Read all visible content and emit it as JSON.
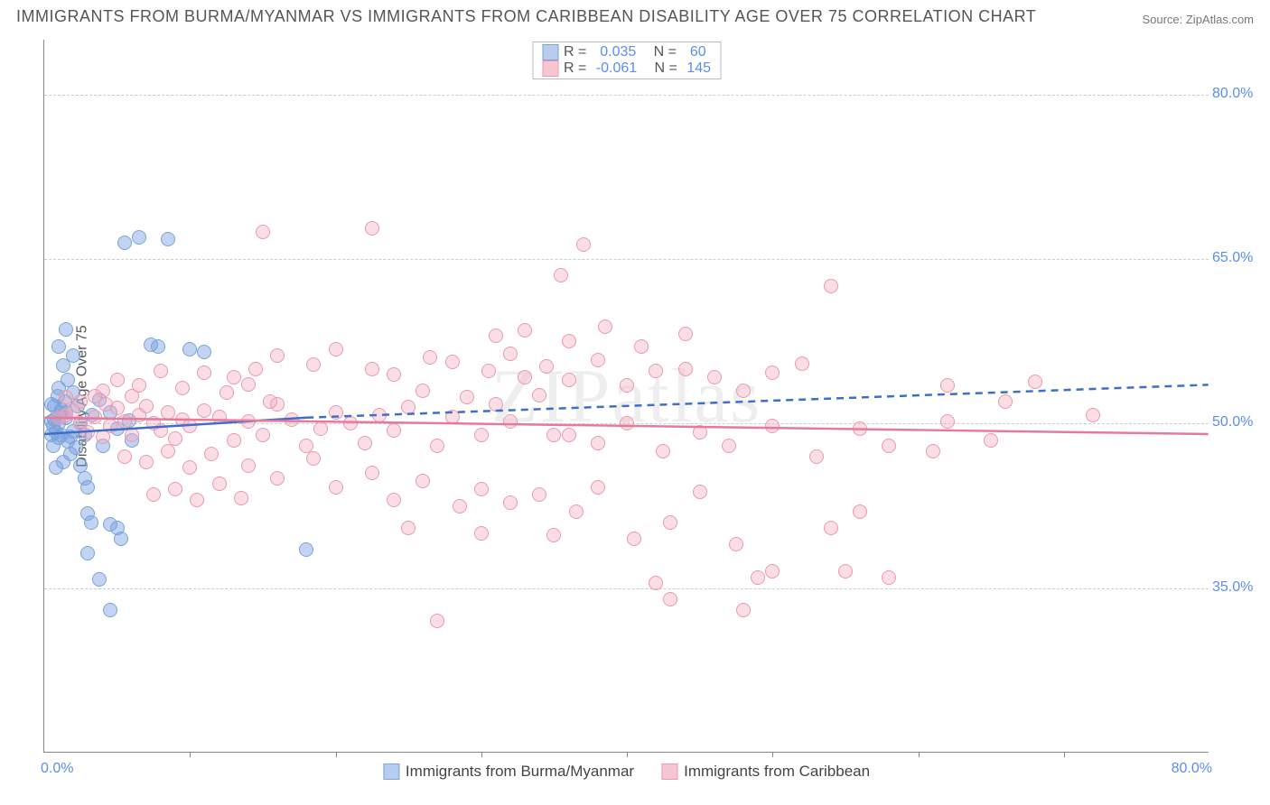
{
  "title": "IMMIGRANTS FROM BURMA/MYANMAR VS IMMIGRANTS FROM CARIBBEAN DISABILITY AGE OVER 75 CORRELATION CHART",
  "source": "Source: ZipAtlas.com",
  "watermark": "ZIPatlas",
  "ylabel": "Disability Age Over 75",
  "chart": {
    "type": "scatter",
    "xlim": [
      0,
      80
    ],
    "ylim": [
      20,
      85
    ],
    "x_min_label": "0.0%",
    "x_max_label": "80.0%",
    "y_ticks": [
      35.0,
      50.0,
      65.0,
      80.0
    ],
    "y_tick_labels": [
      "35.0%",
      "50.0%",
      "65.0%",
      "80.0%"
    ],
    "x_ticks": [
      10,
      20,
      30,
      40,
      50,
      60,
      70
    ],
    "marker_radius": 8,
    "marker_border_width": 1.5,
    "grid_color": "#cccccc",
    "background_color": "#ffffff"
  },
  "series": [
    {
      "id": "burma",
      "label": "Immigrants from Burma/Myanmar",
      "fill_color": "rgba(120,160,225,0.45)",
      "border_color": "#7ba3d9",
      "swatch_fill": "#b6cdef",
      "trend_color": "#3f6ec9",
      "trend_style": "solid-then-dashed",
      "trend_width": 2.5,
      "trend_start_y": 49.0,
      "trend_solid_end_x": 18,
      "trend_solid_end_y": 50.5,
      "trend_end_y": 53.5,
      "R": "0.035",
      "N": "60",
      "points": [
        [
          0.5,
          49.0
        ],
        [
          0.6,
          49.8
        ],
        [
          0.7,
          50.4
        ],
        [
          0.8,
          49.2
        ],
        [
          1.0,
          48.7
        ],
        [
          1.1,
          50.9
        ],
        [
          1.2,
          51.3
        ],
        [
          1.4,
          52.0
        ],
        [
          1.5,
          50.5
        ],
        [
          1.6,
          48.4
        ],
        [
          1.8,
          47.2
        ],
        [
          2.0,
          49.3
        ],
        [
          2.2,
          47.8
        ],
        [
          2.5,
          46.2
        ],
        [
          2.8,
          45.0
        ],
        [
          3.0,
          44.2
        ],
        [
          1.0,
          53.2
        ],
        [
          1.3,
          55.3
        ],
        [
          1.6,
          54.0
        ],
        [
          2.0,
          52.8
        ],
        [
          2.3,
          51.6
        ],
        [
          3.3,
          50.8
        ],
        [
          3.8,
          52.2
        ],
        [
          4.5,
          51.0
        ],
        [
          5.0,
          49.5
        ],
        [
          5.8,
          50.3
        ],
        [
          1.0,
          57.0
        ],
        [
          1.5,
          58.6
        ],
        [
          2.0,
          56.2
        ],
        [
          0.7,
          51.6
        ],
        [
          0.9,
          52.5
        ],
        [
          5.5,
          66.5
        ],
        [
          6.5,
          67.0
        ],
        [
          8.5,
          66.8
        ],
        [
          7.3,
          57.2
        ],
        [
          7.8,
          57.0
        ],
        [
          10.0,
          56.8
        ],
        [
          11.0,
          56.5
        ],
        [
          3.0,
          41.8
        ],
        [
          3.2,
          41.0
        ],
        [
          4.5,
          40.8
        ],
        [
          5.0,
          40.5
        ],
        [
          5.3,
          39.5
        ],
        [
          3.8,
          35.8
        ],
        [
          4.5,
          33.0
        ],
        [
          3.0,
          38.2
        ],
        [
          0.8,
          46.0
        ],
        [
          1.3,
          46.5
        ],
        [
          0.6,
          48.0
        ],
        [
          4.0,
          48.0
        ],
        [
          18.0,
          38.5
        ],
        [
          0.5,
          51.8
        ],
        [
          0.5,
          50.2
        ],
        [
          1.0,
          50.0
        ],
        [
          1.2,
          49.0
        ],
        [
          1.5,
          51.0
        ],
        [
          2.5,
          50.0
        ],
        [
          2.8,
          49.0
        ],
        [
          1.8,
          48.8
        ],
        [
          6.0,
          48.5
        ]
      ]
    },
    {
      "id": "caribbean",
      "label": "Immigrants from Caribbean",
      "fill_color": "rgba(244,170,190,0.4)",
      "border_color": "#e99aaf",
      "swatch_fill": "#f6c6d3",
      "trend_color": "#e77a9a",
      "trend_style": "solid",
      "trend_width": 2.5,
      "trend_start_y": 50.5,
      "trend_end_y": 49.0,
      "R": "-0.061",
      "N": "145",
      "points": [
        [
          1.0,
          50.5
        ],
        [
          1.5,
          50.8
        ],
        [
          2.0,
          51.2
        ],
        [
          2.5,
          50.0
        ],
        [
          3.0,
          49.2
        ],
        [
          3.5,
          50.6
        ],
        [
          4.0,
          48.8
        ],
        [
          4.5,
          49.8
        ],
        [
          5.0,
          51.4
        ],
        [
          5.5,
          50.2
        ],
        [
          6.0,
          49.0
        ],
        [
          6.5,
          50.8
        ],
        [
          7.0,
          51.6
        ],
        [
          7.5,
          50.0
        ],
        [
          8.0,
          49.4
        ],
        [
          8.5,
          51.0
        ],
        [
          9.0,
          48.6
        ],
        [
          9.5,
          50.4
        ],
        [
          10.0,
          49.8
        ],
        [
          11.0,
          51.2
        ],
        [
          12.0,
          50.6
        ],
        [
          13.0,
          48.5
        ],
        [
          14.0,
          50.2
        ],
        [
          15.0,
          49.0
        ],
        [
          16.0,
          51.8
        ],
        [
          17.0,
          50.4
        ],
        [
          18.0,
          48.0
        ],
        [
          19.0,
          49.5
        ],
        [
          20.0,
          51.0
        ],
        [
          21.0,
          50.0
        ],
        [
          22.0,
          48.2
        ],
        [
          23.0,
          50.8
        ],
        [
          24.0,
          49.4
        ],
        [
          25.0,
          51.5
        ],
        [
          26.0,
          53.0
        ],
        [
          27.0,
          48.0
        ],
        [
          28.0,
          50.6
        ],
        [
          29.0,
          52.4
        ],
        [
          30.0,
          49.0
        ],
        [
          31.0,
          51.8
        ],
        [
          32.0,
          50.2
        ],
        [
          33.0,
          54.2
        ],
        [
          34.0,
          52.6
        ],
        [
          35.0,
          49.0
        ],
        [
          13.0,
          54.2
        ],
        [
          14.5,
          55.0
        ],
        [
          16.0,
          56.2
        ],
        [
          18.5,
          55.4
        ],
        [
          20.0,
          56.8
        ],
        [
          22.5,
          55.0
        ],
        [
          24.0,
          54.5
        ],
        [
          26.5,
          56.0
        ],
        [
          28.0,
          55.6
        ],
        [
          30.5,
          54.8
        ],
        [
          32.0,
          56.4
        ],
        [
          34.5,
          55.2
        ],
        [
          36.0,
          54.0
        ],
        [
          38.0,
          55.8
        ],
        [
          40.0,
          53.5
        ],
        [
          42.0,
          54.8
        ],
        [
          44.0,
          55.0
        ],
        [
          46.0,
          54.2
        ],
        [
          48.0,
          53.0
        ],
        [
          50.0,
          54.6
        ],
        [
          52.0,
          55.5
        ],
        [
          15.0,
          67.5
        ],
        [
          22.5,
          67.8
        ],
        [
          37.0,
          66.3
        ],
        [
          54.0,
          62.5
        ],
        [
          35.5,
          63.5
        ],
        [
          31.0,
          58.0
        ],
        [
          33.0,
          58.5
        ],
        [
          36.0,
          57.5
        ],
        [
          38.5,
          58.8
        ],
        [
          41.0,
          57.0
        ],
        [
          44.0,
          58.2
        ],
        [
          62.0,
          53.5
        ],
        [
          66.0,
          52.0
        ],
        [
          68.0,
          53.8
        ],
        [
          36.0,
          49.0
        ],
        [
          38.0,
          48.2
        ],
        [
          40.0,
          50.0
        ],
        [
          42.5,
          47.5
        ],
        [
          45.0,
          49.2
        ],
        [
          47.0,
          48.0
        ],
        [
          50.0,
          49.8
        ],
        [
          53.0,
          47.0
        ],
        [
          56.0,
          49.5
        ],
        [
          58.0,
          48.0
        ],
        [
          62.0,
          50.2
        ],
        [
          65.0,
          48.5
        ],
        [
          61.0,
          47.5
        ],
        [
          72.0,
          50.8
        ],
        [
          14.0,
          46.2
        ],
        [
          16.0,
          45.0
        ],
        [
          18.5,
          46.8
        ],
        [
          20.0,
          44.2
        ],
        [
          22.5,
          45.5
        ],
        [
          24.0,
          43.0
        ],
        [
          26.0,
          44.8
        ],
        [
          28.5,
          42.5
        ],
        [
          30.0,
          44.0
        ],
        [
          32.0,
          42.8
        ],
        [
          34.0,
          43.5
        ],
        [
          36.5,
          42.0
        ],
        [
          38.0,
          44.2
        ],
        [
          40.5,
          39.5
        ],
        [
          43.0,
          41.0
        ],
        [
          45.0,
          43.8
        ],
        [
          47.5,
          39.0
        ],
        [
          50.0,
          36.5
        ],
        [
          25.0,
          40.5
        ],
        [
          30.0,
          40.0
        ],
        [
          35.0,
          39.8
        ],
        [
          27.0,
          32.0
        ],
        [
          42.0,
          35.5
        ],
        [
          43.0,
          34.0
        ],
        [
          48.0,
          33.0
        ],
        [
          49.0,
          36.0
        ],
        [
          55.0,
          36.5
        ],
        [
          56.0,
          42.0
        ],
        [
          58.0,
          36.0
        ],
        [
          54.0,
          40.5
        ],
        [
          4.0,
          53.0
        ],
        [
          5.0,
          54.0
        ],
        [
          6.5,
          53.5
        ],
        [
          8.0,
          54.8
        ],
        [
          9.5,
          53.2
        ],
        [
          11.0,
          54.6
        ],
        [
          12.5,
          52.8
        ],
        [
          14.0,
          53.6
        ],
        [
          15.5,
          52.0
        ],
        [
          5.5,
          47.0
        ],
        [
          7.0,
          46.5
        ],
        [
          8.5,
          47.5
        ],
        [
          10.0,
          46.0
        ],
        [
          11.5,
          47.2
        ],
        [
          7.5,
          43.5
        ],
        [
          9.0,
          44.0
        ],
        [
          10.5,
          43.0
        ],
        [
          12.0,
          44.5
        ],
        [
          13.5,
          43.2
        ],
        [
          3.5,
          52.5
        ],
        [
          2.5,
          52.0
        ],
        [
          1.5,
          52.4
        ],
        [
          4.2,
          51.8
        ],
        [
          6.0,
          52.5
        ]
      ]
    }
  ]
}
